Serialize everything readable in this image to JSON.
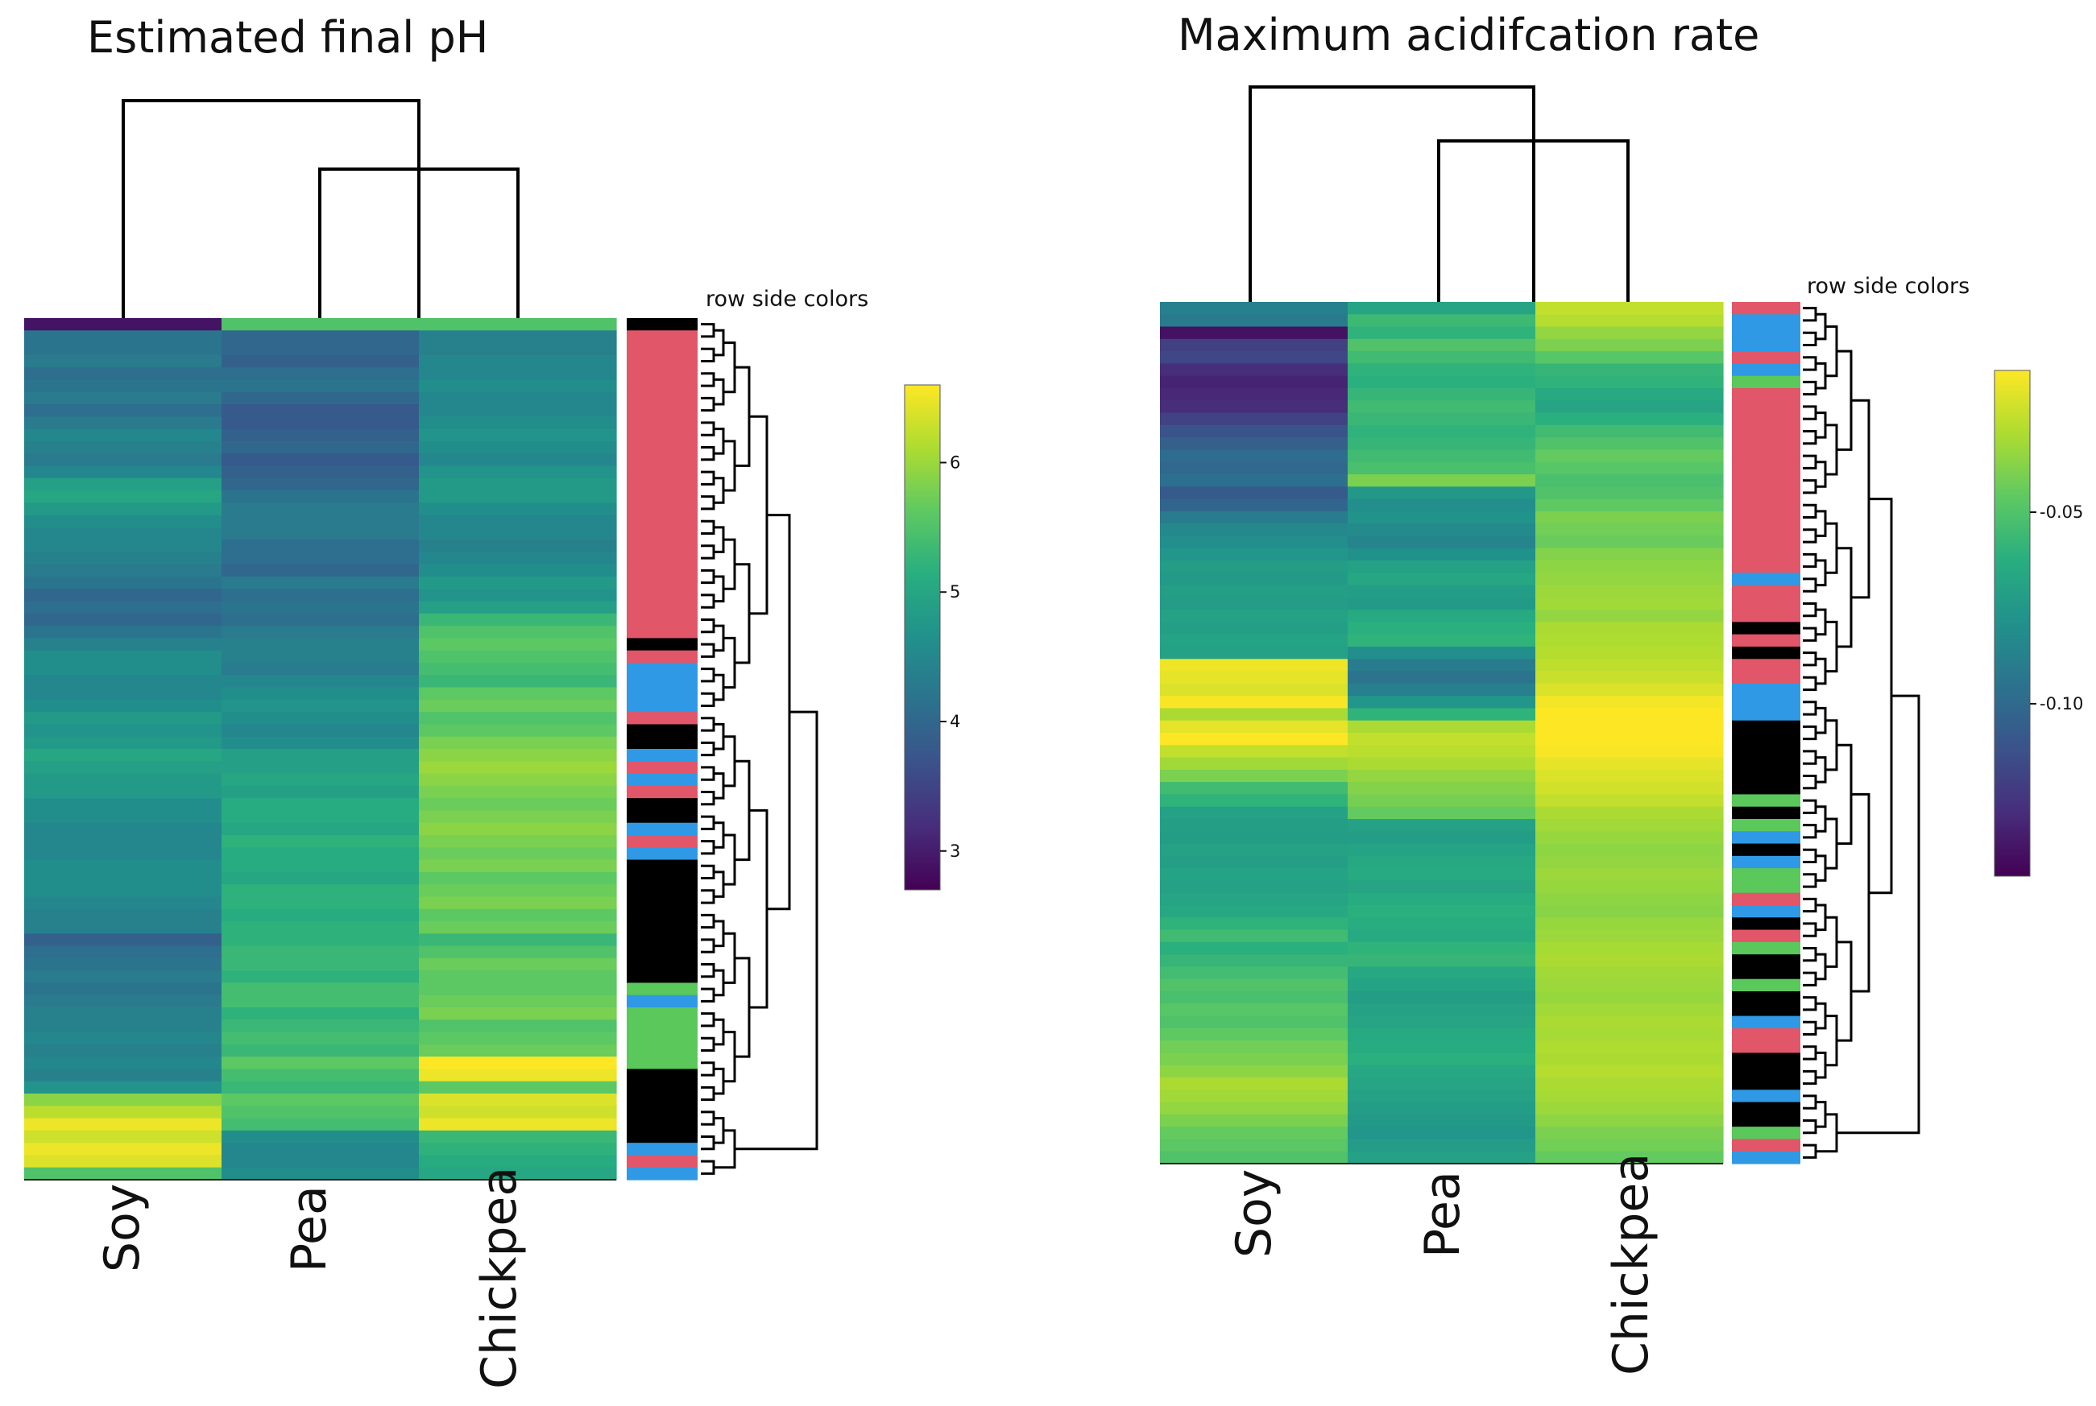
{
  "chart_data": [
    {
      "type": "heatmap",
      "title": "Estimated final pH",
      "columns": [
        "Soy",
        "Pea",
        "Chickpea"
      ],
      "row_side_colors_label": "row side colors",
      "colorbar": {
        "ticks": [
          3,
          4,
          5,
          6
        ],
        "range": [
          2.7,
          6.6
        ],
        "colormap": "viridis"
      },
      "column_values": {
        "Soy": [
          2.9,
          4.2,
          4.2,
          4.3,
          4.1,
          4.2,
          4.3,
          4.1,
          4.3,
          4.5,
          4.4,
          4.3,
          4.5,
          4.9,
          5.0,
          4.8,
          4.6,
          4.5,
          4.5,
          4.4,
          4.3,
          4.2,
          4.0,
          4.1,
          4.0,
          4.2,
          4.4,
          4.6,
          4.6,
          4.5,
          4.5,
          4.6,
          4.8,
          4.7,
          4.8,
          5.0,
          4.9,
          4.8,
          4.8,
          4.6,
          4.6,
          4.5,
          4.5,
          4.5,
          4.6,
          4.6,
          4.6,
          4.5,
          4.4,
          4.4,
          3.9,
          4.1,
          4.2,
          4.3,
          4.2,
          4.3,
          4.4,
          4.4,
          4.5,
          4.4,
          4.5,
          4.4,
          4.7,
          5.9,
          6.2,
          6.5,
          6.3,
          6.5,
          6.4,
          5.5
        ],
        "Pea": [
          5.5,
          4.0,
          4.0,
          3.9,
          4.1,
          4.2,
          4.0,
          3.8,
          3.8,
          3.9,
          4.0,
          3.8,
          3.9,
          4.0,
          4.2,
          4.3,
          4.3,
          4.3,
          4.1,
          4.1,
          4.0,
          4.3,
          4.1,
          4.2,
          4.1,
          4.3,
          4.4,
          4.4,
          4.3,
          4.5,
          4.6,
          4.7,
          4.6,
          4.5,
          4.6,
          4.9,
          4.9,
          5.0,
          4.9,
          5.1,
          5.1,
          5.0,
          5.2,
          5.1,
          5.1,
          5.0,
          5.2,
          5.2,
          5.1,
          5.2,
          5.2,
          5.3,
          5.3,
          5.2,
          5.4,
          5.4,
          5.2,
          5.3,
          5.4,
          5.3,
          5.6,
          5.4,
          5.3,
          5.6,
          5.5,
          5.4,
          4.6,
          4.5,
          4.5,
          4.6
        ],
        "Chickpea": [
          5.5,
          4.4,
          4.4,
          4.5,
          4.5,
          4.6,
          4.5,
          4.5,
          4.6,
          4.7,
          4.6,
          4.5,
          4.7,
          4.8,
          4.8,
          4.6,
          4.5,
          4.5,
          4.4,
          4.5,
          4.6,
          4.8,
          4.7,
          4.9,
          5.3,
          5.5,
          5.6,
          5.5,
          5.4,
          5.3,
          5.6,
          5.7,
          5.5,
          5.6,
          5.8,
          5.9,
          6.0,
          5.9,
          5.8,
          5.7,
          5.8,
          5.9,
          5.8,
          5.7,
          5.8,
          5.6,
          5.7,
          5.8,
          5.6,
          5.7,
          5.3,
          5.5,
          5.7,
          5.6,
          5.6,
          5.7,
          5.8,
          5.5,
          5.6,
          5.7,
          6.6,
          6.5,
          5.6,
          6.4,
          6.3,
          6.5,
          5.3,
          5.2,
          5.1,
          5.0
        ]
      },
      "row_side_colors": [
        "k",
        "r",
        "r",
        "r",
        "r",
        "r",
        "r",
        "r",
        "r",
        "r",
        "r",
        "r",
        "r",
        "r",
        "r",
        "r",
        "r",
        "r",
        "r",
        "r",
        "r",
        "r",
        "r",
        "r",
        "r",
        "r",
        "k",
        "r",
        "b",
        "b",
        "b",
        "b",
        "r",
        "k",
        "k",
        "b",
        "r",
        "b",
        "r",
        "k",
        "k",
        "b",
        "r",
        "b",
        "k",
        "k",
        "k",
        "k",
        "k",
        "k",
        "k",
        "k",
        "k",
        "k",
        "g",
        "b",
        "g",
        "g",
        "g",
        "g",
        "g",
        "k",
        "k",
        "k",
        "k",
        "k",
        "k",
        "b",
        "r",
        "b"
      ]
    },
    {
      "type": "heatmap",
      "title": "Maximum acidifcation rate",
      "columns": [
        "Soy",
        "Pea",
        "Chickpea"
      ],
      "row_side_colors_label": "row side colors",
      "colorbar": {
        "ticks": [
          -0.05,
          -0.1
        ],
        "tick_labels": [
          "-0.05",
          "-0.10"
        ],
        "range": [
          -0.145,
          -0.013
        ],
        "colormap": "viridis"
      },
      "column_values": {
        "Soy": [
          -0.088,
          -0.091,
          -0.139,
          -0.12,
          -0.117,
          -0.128,
          -0.132,
          -0.13,
          -0.128,
          -0.119,
          -0.111,
          -0.105,
          -0.098,
          -0.1,
          -0.097,
          -0.108,
          -0.102,
          -0.09,
          -0.084,
          -0.08,
          -0.076,
          -0.072,
          -0.074,
          -0.071,
          -0.073,
          -0.07,
          -0.071,
          -0.069,
          -0.07,
          -0.016,
          -0.018,
          -0.02,
          -0.014,
          -0.03,
          -0.018,
          -0.012,
          -0.025,
          -0.032,
          -0.04,
          -0.055,
          -0.06,
          -0.07,
          -0.071,
          -0.072,
          -0.07,
          -0.071,
          -0.069,
          -0.07,
          -0.068,
          -0.066,
          -0.06,
          -0.055,
          -0.062,
          -0.058,
          -0.054,
          -0.05,
          -0.052,
          -0.048,
          -0.05,
          -0.046,
          -0.042,
          -0.04,
          -0.036,
          -0.03,
          -0.032,
          -0.035,
          -0.04,
          -0.045,
          -0.047,
          -0.05
        ],
        "Pea": [
          -0.068,
          -0.056,
          -0.06,
          -0.05,
          -0.055,
          -0.06,
          -0.062,
          -0.058,
          -0.055,
          -0.057,
          -0.06,
          -0.058,
          -0.055,
          -0.052,
          -0.04,
          -0.075,
          -0.08,
          -0.078,
          -0.082,
          -0.086,
          -0.079,
          -0.07,
          -0.067,
          -0.072,
          -0.074,
          -0.065,
          -0.062,
          -0.06,
          -0.08,
          -0.09,
          -0.095,
          -0.088,
          -0.076,
          -0.06,
          -0.03,
          -0.025,
          -0.027,
          -0.03,
          -0.035,
          -0.038,
          -0.041,
          -0.045,
          -0.07,
          -0.072,
          -0.069,
          -0.066,
          -0.065,
          -0.068,
          -0.064,
          -0.062,
          -0.063,
          -0.065,
          -0.06,
          -0.058,
          -0.066,
          -0.069,
          -0.072,
          -0.07,
          -0.068,
          -0.065,
          -0.064,
          -0.062,
          -0.066,
          -0.068,
          -0.07,
          -0.072,
          -0.074,
          -0.076,
          -0.073,
          -0.07
        ],
        "Chickpea": [
          -0.025,
          -0.028,
          -0.035,
          -0.04,
          -0.048,
          -0.058,
          -0.06,
          -0.065,
          -0.068,
          -0.062,
          -0.055,
          -0.05,
          -0.045,
          -0.048,
          -0.052,
          -0.05,
          -0.046,
          -0.04,
          -0.042,
          -0.044,
          -0.038,
          -0.036,
          -0.035,
          -0.033,
          -0.032,
          -0.035,
          -0.03,
          -0.029,
          -0.028,
          -0.026,
          -0.024,
          -0.02,
          -0.015,
          -0.01,
          -0.012,
          -0.01,
          -0.014,
          -0.018,
          -0.02,
          -0.022,
          -0.025,
          -0.03,
          -0.032,
          -0.034,
          -0.036,
          -0.035,
          -0.033,
          -0.034,
          -0.036,
          -0.037,
          -0.034,
          -0.033,
          -0.031,
          -0.03,
          -0.032,
          -0.033,
          -0.034,
          -0.032,
          -0.03,
          -0.031,
          -0.029,
          -0.03,
          -0.028,
          -0.03,
          -0.031,
          -0.033,
          -0.036,
          -0.04,
          -0.042,
          -0.045
        ]
      },
      "row_side_colors": [
        "r",
        "b",
        "b",
        "b",
        "r",
        "b",
        "g",
        "r",
        "r",
        "r",
        "r",
        "r",
        "r",
        "r",
        "r",
        "r",
        "r",
        "r",
        "r",
        "r",
        "r",
        "r",
        "b",
        "r",
        "r",
        "r",
        "k",
        "r",
        "k",
        "r",
        "r",
        "b",
        "b",
        "b",
        "k",
        "k",
        "k",
        "k",
        "k",
        "k",
        "g",
        "k",
        "g",
        "b",
        "k",
        "b",
        "g",
        "g",
        "r",
        "b",
        "k",
        "r",
        "g",
        "k",
        "k",
        "g",
        "k",
        "k",
        "b",
        "r",
        "r",
        "k",
        "k",
        "k",
        "b",
        "k",
        "k",
        "g",
        "r",
        "b"
      ]
    }
  ],
  "colors": {
    "r": "#E15668",
    "b": "#2F99E5",
    "g": "#5AC85A",
    "k": "#000000"
  }
}
